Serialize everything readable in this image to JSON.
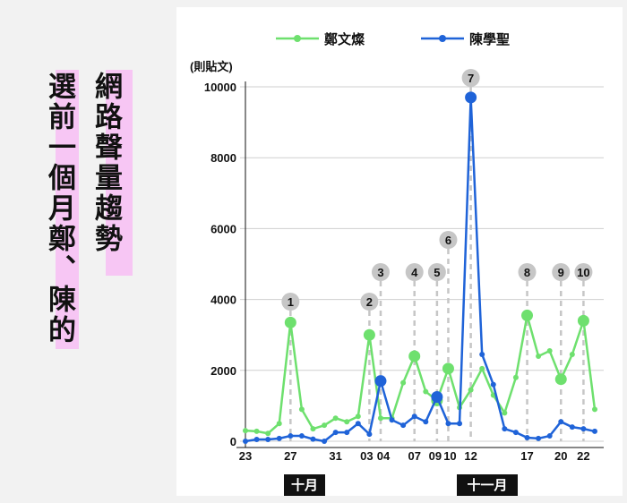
{
  "headline": {
    "line1": "網路聲量趨勢",
    "line2": "選前一個月鄭、陳的"
  },
  "chart_data": {
    "type": "line",
    "ylabel": "(則貼文)",
    "ylim": [
      0,
      10000
    ],
    "yticks": [
      0,
      2000,
      4000,
      6000,
      8000,
      10000
    ],
    "grid": true,
    "legend_position": "top",
    "x_tick_labels": [
      "23",
      "27",
      "31",
      "03",
      "04",
      "07",
      "09",
      "10",
      "12",
      "17",
      "20",
      "22"
    ],
    "month_labels": [
      "十月",
      "十一月"
    ],
    "series": [
      {
        "name": "鄭文燦",
        "color": "#6ee06e",
        "values": [
          300,
          280,
          220,
          500,
          3350,
          900,
          350,
          450,
          650,
          550,
          700,
          3000,
          650,
          650,
          1650,
          2400,
          1400,
          1150,
          2050,
          950,
          1450,
          2050,
          1300,
          800,
          1800,
          3550,
          2400,
          2550,
          1750,
          2450,
          3400,
          900
        ]
      },
      {
        "name": "陳學聖",
        "color": "#1f63d8",
        "values": [
          0,
          50,
          50,
          80,
          150,
          150,
          60,
          0,
          250,
          250,
          500,
          200,
          1700,
          600,
          450,
          700,
          550,
          1250,
          500,
          500,
          9700,
          2450,
          1600,
          350,
          250,
          100,
          80,
          150,
          550,
          400,
          350,
          280
        ]
      }
    ],
    "annotations": [
      {
        "label": "1",
        "index": 4
      },
      {
        "label": "2",
        "index": 11
      },
      {
        "label": "3",
        "index": 12
      },
      {
        "label": "4",
        "index": 15
      },
      {
        "label": "5",
        "index": 17
      },
      {
        "label": "6",
        "index": 18
      },
      {
        "label": "7",
        "index": 20
      },
      {
        "label": "8",
        "index": 25
      },
      {
        "label": "9",
        "index": 28
      },
      {
        "label": "10",
        "index": 30
      }
    ],
    "colors": {
      "grid": "#cfcfcf",
      "axis": "#111111",
      "marker": "#c6c6c6",
      "dash": "#c6c6c6"
    }
  }
}
